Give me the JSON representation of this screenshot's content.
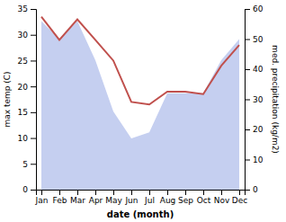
{
  "chart_data": {
    "type": "line",
    "categories": [
      "Jan",
      "Feb",
      "Mar",
      "Apr",
      "May",
      "Jun",
      "Jul",
      "Aug",
      "Sep",
      "Oct",
      "Nov",
      "Dec"
    ],
    "series": [
      {
        "type": "line",
        "color": "#c0504d",
        "values": [
          33.5,
          29.0,
          33.0,
          29.0,
          25.0,
          17.0,
          16.5,
          19.0,
          19.0,
          18.5,
          24.0,
          28.0
        ]
      },
      {
        "type": "area",
        "color": "#c5cff0",
        "axis": "y2",
        "values": [
          56.0,
          50.0,
          56.0,
          43.0,
          26.0,
          17.0,
          19.0,
          32.0,
          32.0,
          32.0,
          43.0,
          50.0
        ]
      }
    ],
    "xlabel": "date (month)",
    "ylabel": "max temp (C)",
    "y2label": "med. precipitation (kg/m2)",
    "ylim": [
      0,
      35
    ],
    "yticks": [
      0,
      5,
      10,
      15,
      20,
      25,
      30,
      35
    ],
    "y2lim": [
      0,
      60
    ],
    "y2ticks": [
      0,
      10,
      20,
      30,
      40,
      50,
      60
    ],
    "grid": false
  }
}
